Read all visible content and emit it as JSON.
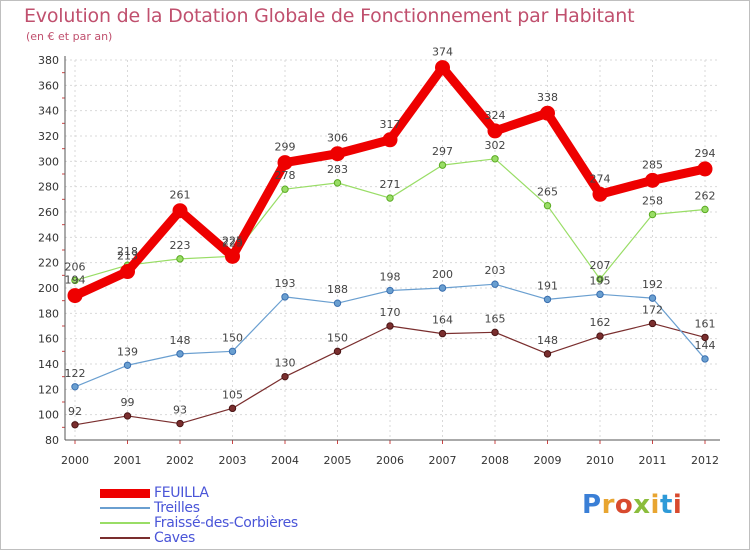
{
  "title": "Evolution de la Dotation Globale de Fonctionnement par Habitant",
  "subtitle": "(en € et par an)",
  "logo": {
    "text": "Proxiti",
    "colors": [
      "#3a7fd6",
      "#e8a531",
      "#d84a2e",
      "#8bbd3c",
      "#e8a531",
      "#2e9ad8",
      "#d84a2e"
    ]
  },
  "chart_data": {
    "type": "line",
    "x": [
      "2000",
      "2001",
      "2002",
      "2003",
      "2004",
      "2005",
      "2006",
      "2007",
      "2008",
      "2009",
      "2010",
      "2011",
      "2012"
    ],
    "ylim": [
      80,
      380
    ],
    "yticks": [
      80,
      100,
      120,
      140,
      160,
      180,
      200,
      220,
      240,
      260,
      280,
      300,
      320,
      340,
      360,
      380
    ],
    "grid": true,
    "legend_position": "bottom-left",
    "series": [
      {
        "name": "FEUILLA",
        "color": "#ee0000",
        "values": [
          194,
          213,
          261,
          225,
          299,
          306,
          317,
          374,
          324,
          338,
          274,
          285,
          294
        ],
        "labels": [
          "194",
          "213",
          "261",
          "225",
          "299",
          "306",
          "317",
          "374",
          "324",
          "338",
          "274",
          "285",
          "294"
        ]
      },
      {
        "name": "Treilles",
        "color": "#6a9fd0",
        "values": [
          122,
          139,
          148,
          150,
          193,
          188,
          198,
          200,
          203,
          191,
          195,
          192,
          144
        ],
        "labels": [
          "122",
          "139",
          "148",
          "150",
          "193",
          "188",
          "198",
          "200",
          "203",
          "191",
          "195",
          "192",
          "144"
        ]
      },
      {
        "name": "Fraissé-des-Corbières",
        "color": "#99dd66",
        "values": [
          206,
          218,
          223,
          225,
          278,
          283,
          271,
          297,
          302,
          265,
          207,
          258,
          262
        ],
        "labels": [
          "206",
          "218",
          "223",
          "225",
          "278",
          "283",
          "271",
          "297",
          "302",
          "265",
          "207",
          "258",
          "262"
        ]
      },
      {
        "name": "Caves",
        "color": "#7a2e2e",
        "values": [
          92,
          99,
          93,
          105,
          130,
          150,
          170,
          164,
          165,
          148,
          162,
          172,
          161
        ],
        "labels": [
          "92",
          "99",
          "93",
          "105",
          "130",
          "150",
          "170",
          "164",
          "165",
          "148",
          "162",
          "172",
          "161"
        ]
      }
    ]
  }
}
